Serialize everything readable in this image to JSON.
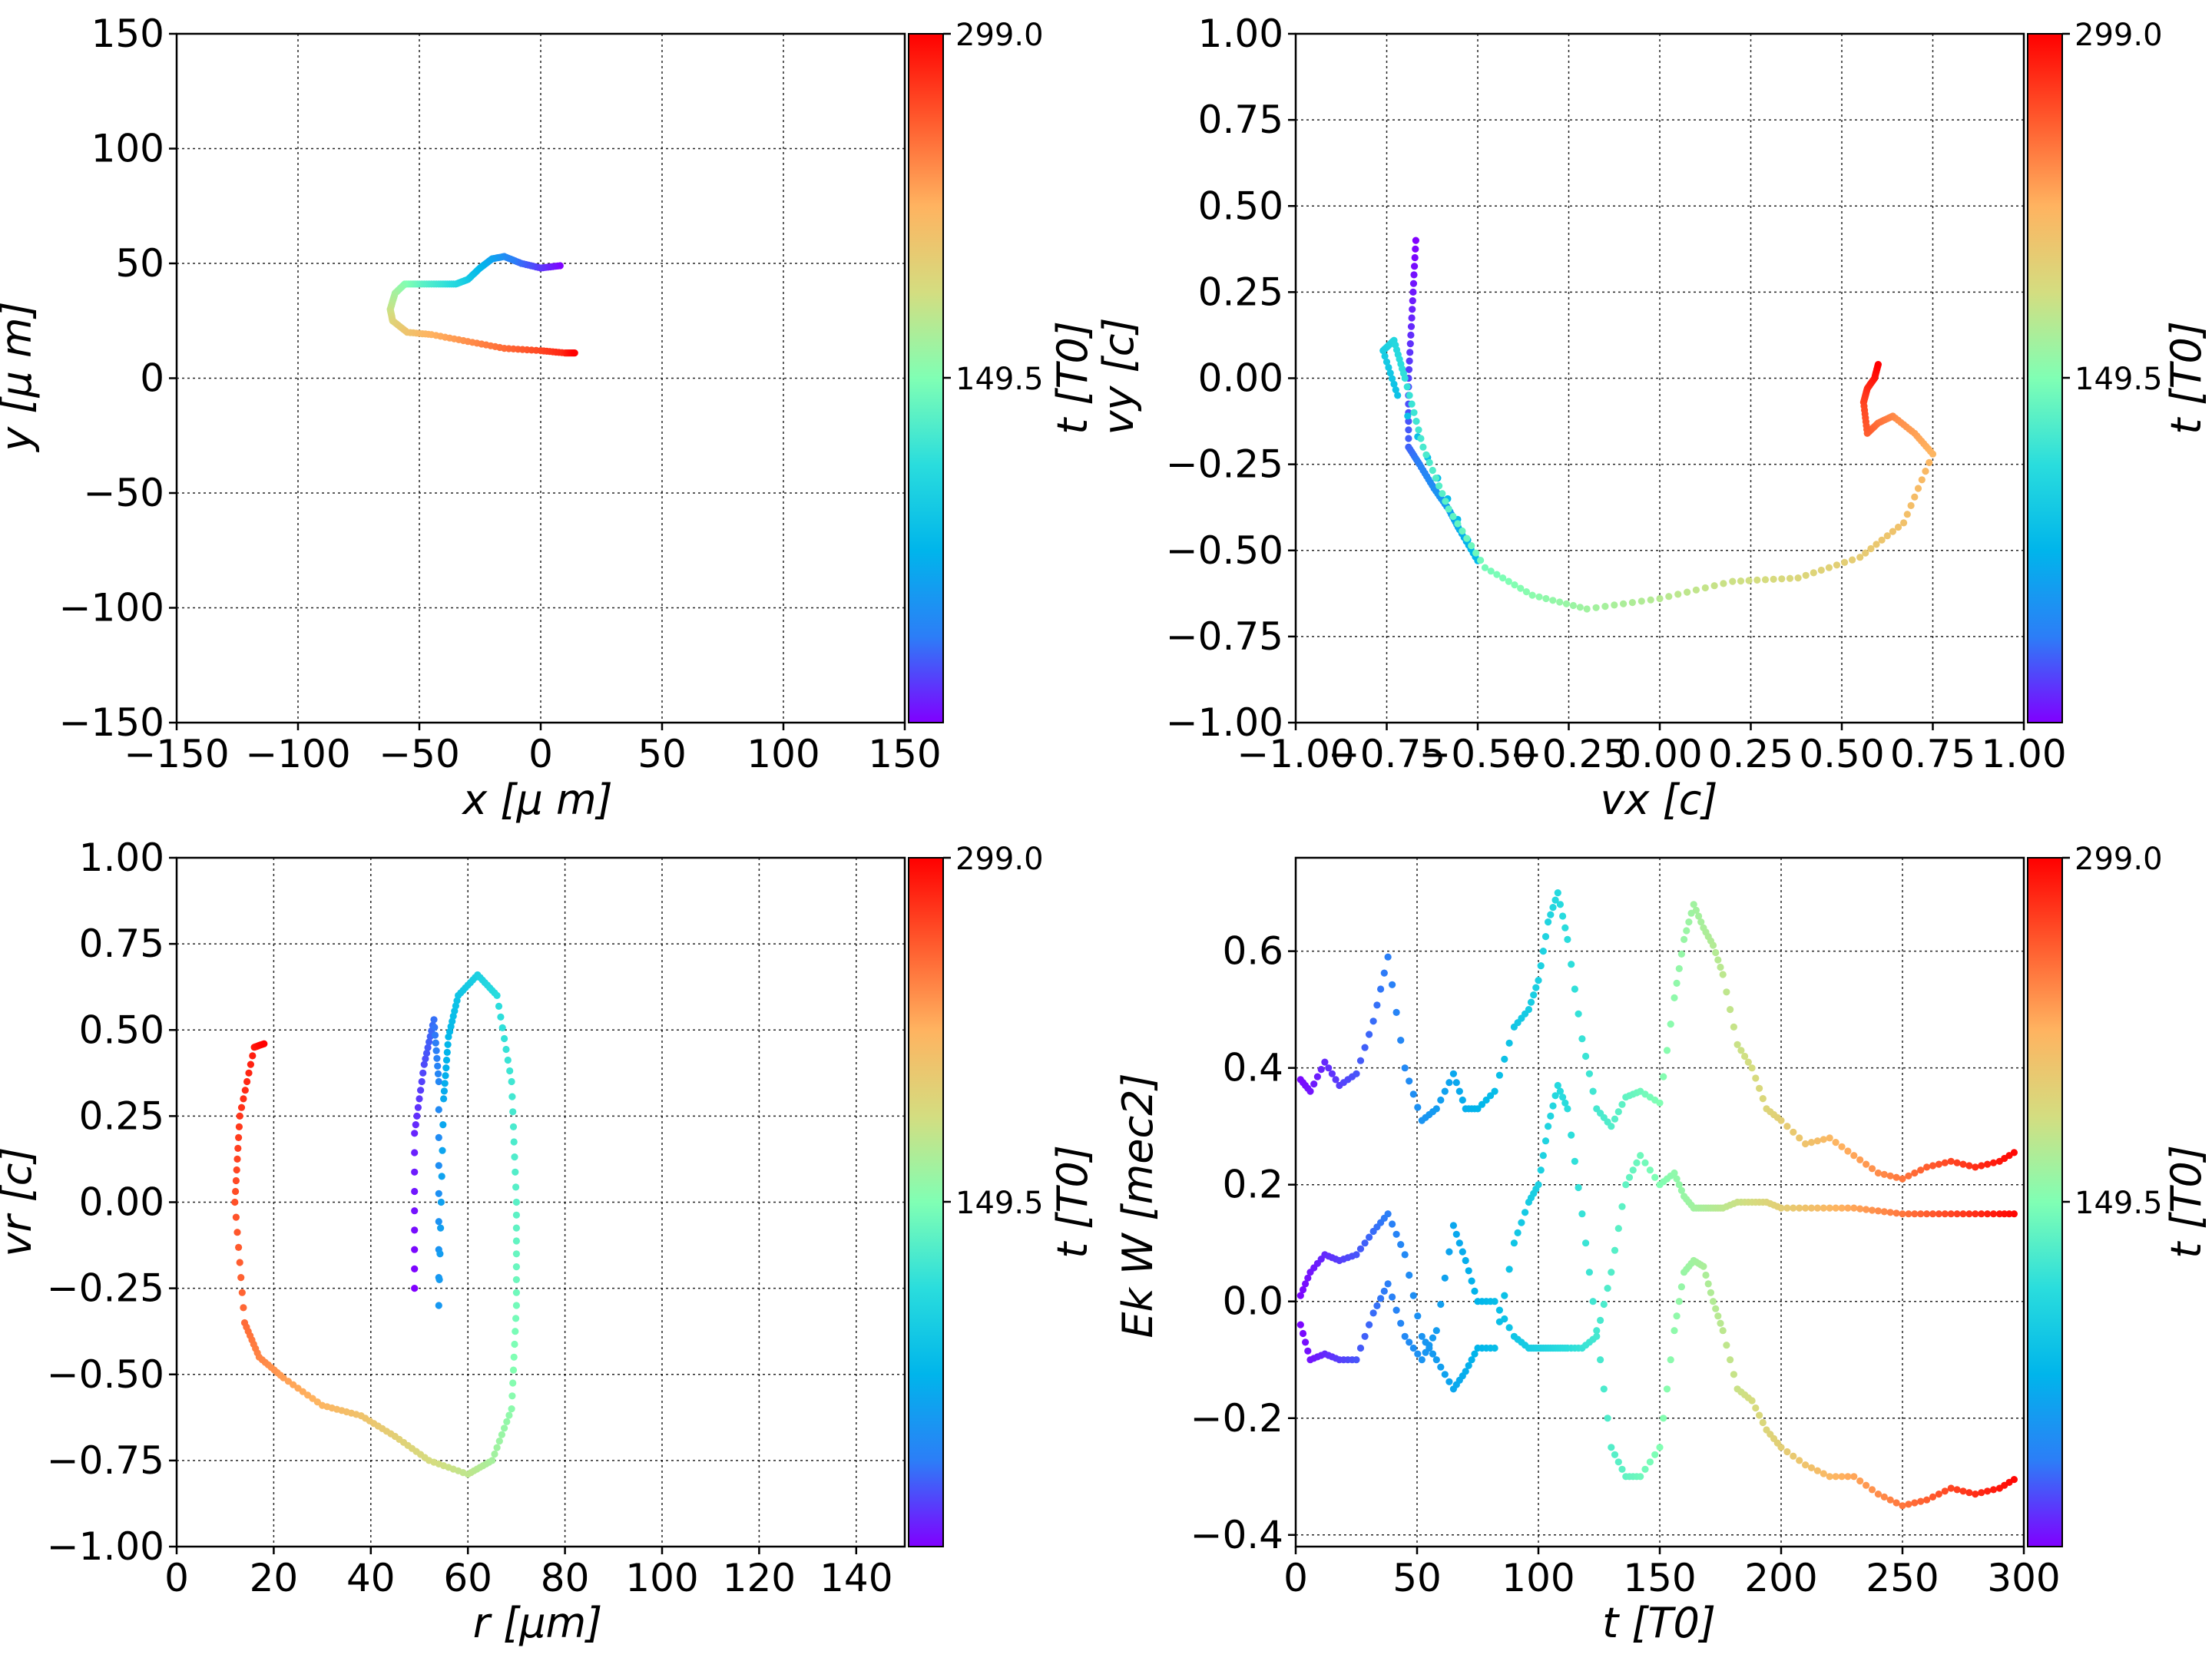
{
  "colors": {
    "colormap": "rainbow",
    "colormap_stops": [
      "#8000ff",
      "#2c7ef7",
      "#00b5eb",
      "#2adddd",
      "#80ffb4",
      "#d4dd80",
      "#ffb360",
      "#ff5a2d",
      "#ff0000"
    ]
  },
  "chart_data": [
    {
      "type": "scatter",
      "xlabel": "x  [μ m]",
      "ylabel": "y  [μ m]",
      "xlim": [
        -150,
        150
      ],
      "ylim": [
        -150,
        150
      ],
      "xticks": [
        "−150",
        "−100",
        "−50",
        "0",
        "50",
        "100",
        "150"
      ],
      "yticks": [
        "−150",
        "−100",
        "−50",
        "0",
        "50",
        "100",
        "150"
      ],
      "grid": true,
      "colorbar": {
        "label": "t [T0]",
        "ticks": [
          "149.5",
          "299.0"
        ],
        "range": [
          0,
          299.0
        ],
        "colormap": "rainbow"
      },
      "color_variable": "t",
      "t_range": [
        0,
        299
      ],
      "path": [
        [
          8,
          49
        ],
        [
          0,
          48
        ],
        [
          -8,
          50
        ],
        [
          -15,
          53
        ],
        [
          -20,
          52
        ],
        [
          -25,
          48
        ],
        [
          -30,
          43
        ],
        [
          -35,
          41
        ],
        [
          -42,
          41
        ],
        [
          -50,
          41
        ],
        [
          -56,
          41
        ],
        [
          -60,
          37
        ],
        [
          -62,
          30
        ],
        [
          -61,
          25
        ],
        [
          -55,
          20
        ],
        [
          -45,
          19
        ],
        [
          -30,
          16
        ],
        [
          -15,
          13
        ],
        [
          0,
          12
        ],
        [
          10,
          11
        ],
        [
          14,
          11
        ]
      ]
    },
    {
      "type": "scatter",
      "xlabel": "vx [c]",
      "ylabel": "vy [c]",
      "xlim": [
        -1.0,
        1.0
      ],
      "ylim": [
        -1.0,
        1.0
      ],
      "xticks": [
        "−1.00",
        "−0.75",
        "−0.50",
        "−0.25",
        "0.00",
        "0.25",
        "0.50",
        "0.75",
        "1.00"
      ],
      "yticks": [
        "−1.00",
        "−0.75",
        "−0.50",
        "−0.25",
        "0.00",
        "0.25",
        "0.50",
        "0.75",
        "1.00"
      ],
      "grid": true,
      "colorbar": {
        "label": "t [T0]",
        "ticks": [
          "149.5",
          "299.0"
        ],
        "range": [
          0,
          299.0
        ],
        "colormap": "rainbow"
      },
      "color_variable": "t",
      "t_range": [
        0,
        299
      ],
      "path": [
        [
          -0.67,
          0.4
        ],
        [
          -0.68,
          0.2
        ],
        [
          -0.69,
          0.0
        ],
        [
          -0.69,
          -0.2
        ],
        [
          -0.66,
          -0.25
        ],
        [
          -0.62,
          -0.32
        ],
        [
          -0.58,
          -0.38
        ],
        [
          -0.55,
          -0.44
        ],
        [
          -0.5,
          -0.53
        ],
        [
          -0.72,
          -0.05
        ],
        [
          -0.76,
          0.08
        ],
        [
          -0.73,
          0.11
        ],
        [
          -0.7,
          0.0
        ],
        [
          -0.65,
          -0.2
        ],
        [
          -0.58,
          -0.38
        ],
        [
          -0.48,
          -0.55
        ],
        [
          -0.35,
          -0.63
        ],
        [
          -0.2,
          -0.67
        ],
        [
          0.0,
          -0.64
        ],
        [
          0.2,
          -0.59
        ],
        [
          0.38,
          -0.58
        ],
        [
          0.55,
          -0.52
        ],
        [
          0.67,
          -0.42
        ],
        [
          0.75,
          -0.22
        ],
        [
          0.7,
          -0.16
        ],
        [
          0.64,
          -0.11
        ],
        [
          0.6,
          -0.13
        ],
        [
          0.57,
          -0.16
        ],
        [
          0.56,
          -0.07
        ],
        [
          0.57,
          -0.03
        ],
        [
          0.59,
          0.0
        ],
        [
          0.6,
          0.04
        ]
      ]
    },
    {
      "type": "scatter",
      "xlabel": "r [μm]",
      "ylabel": "vr [c]",
      "xlim": [
        0,
        150
      ],
      "ylim": [
        -1.0,
        1.0
      ],
      "xticks": [
        "0",
        "20",
        "40",
        "60",
        "80",
        "100",
        "120",
        "140"
      ],
      "yticks": [
        "−1.00",
        "−0.75",
        "−0.50",
        "−0.25",
        "0.00",
        "0.25",
        "0.50",
        "0.75",
        "1.00"
      ],
      "grid": true,
      "colorbar": {
        "label": "t [T0]",
        "ticks": [
          "149.5",
          "299.0"
        ],
        "range": [
          0,
          299.0
        ],
        "colormap": "rainbow"
      },
      "color_variable": "t",
      "t_range": [
        0,
        299
      ],
      "path": [
        [
          49,
          -0.25
        ],
        [
          49,
          0.2
        ],
        [
          51,
          0.4
        ],
        [
          53,
          0.53
        ],
        [
          54,
          0.35
        ],
        [
          54,
          -0.3
        ],
        [
          55,
          0.3
        ],
        [
          56,
          0.48
        ],
        [
          58,
          0.6
        ],
        [
          62,
          0.66
        ],
        [
          66,
          0.6
        ],
        [
          69,
          0.35
        ],
        [
          70,
          0.0
        ],
        [
          70,
          -0.3
        ],
        [
          69,
          -0.6
        ],
        [
          65,
          -0.75
        ],
        [
          60,
          -0.79
        ],
        [
          52,
          -0.75
        ],
        [
          45,
          -0.68
        ],
        [
          38,
          -0.62
        ],
        [
          30,
          -0.59
        ],
        [
          22,
          -0.51
        ],
        [
          17,
          -0.45
        ],
        [
          14,
          -0.35
        ],
        [
          12,
          0.0
        ],
        [
          13,
          0.25
        ],
        [
          16,
          0.45
        ],
        [
          18,
          0.46
        ]
      ]
    },
    {
      "type": "scatter",
      "xlabel": "t [T0]",
      "ylabel": "Ek W [mec2]",
      "xlim": [
        0,
        300
      ],
      "ylim": [
        -0.42,
        0.76
      ],
      "xticks": [
        "0",
        "50",
        "100",
        "150",
        "200",
        "250",
        "300"
      ],
      "yticks": [
        "−0.4",
        "−0.2",
        "0.0",
        "0.2",
        "0.4",
        "0.6"
      ],
      "grid": true,
      "colorbar": {
        "label": "t [T0]",
        "ticks": [
          "149.5",
          "299.0"
        ],
        "range": [
          0,
          299.0
        ],
        "colormap": "rainbow"
      },
      "series": [
        {
          "color_variable": "t",
          "x": [
            2,
            6,
            12,
            18,
            25,
            32,
            38,
            45,
            52,
            58,
            65,
            70,
            75,
            82,
            90,
            96,
            100,
            104,
            108,
            112,
            118,
            124,
            130,
            136,
            142,
            150,
            156,
            160,
            164,
            168,
            172,
            176,
            182,
            188,
            194,
            200,
            210,
            220,
            230,
            240,
            250,
            260,
            270,
            280,
            290,
            298
          ],
          "values": [
            0.38,
            0.36,
            0.41,
            0.37,
            0.39,
            0.48,
            0.59,
            0.4,
            0.31,
            0.33,
            0.39,
            0.33,
            0.33,
            0.36,
            0.47,
            0.5,
            0.55,
            0.65,
            0.7,
            0.62,
            0.45,
            0.33,
            0.3,
            0.35,
            0.36,
            0.34,
            0.52,
            0.62,
            0.68,
            0.64,
            0.61,
            0.56,
            0.44,
            0.4,
            0.33,
            0.31,
            0.27,
            0.28,
            0.25,
            0.22,
            0.21,
            0.23,
            0.24,
            0.23,
            0.24,
            0.26
          ]
        },
        {
          "color_variable": "t",
          "x": [
            2,
            6,
            12,
            18,
            25,
            32,
            38,
            45,
            52,
            58,
            65,
            70,
            75,
            82,
            90,
            96,
            100,
            104,
            108,
            112,
            118,
            124,
            130,
            136,
            142,
            150,
            156,
            160,
            164,
            168,
            172,
            176,
            182,
            188,
            194,
            200,
            210,
            220,
            230,
            240,
            250,
            260,
            270,
            280,
            290,
            298
          ],
          "values": [
            0.01,
            0.05,
            0.08,
            0.07,
            0.08,
            0.12,
            0.15,
            0.08,
            -0.06,
            -0.1,
            -0.15,
            -0.12,
            -0.08,
            -0.08,
            0.1,
            0.17,
            0.2,
            0.3,
            0.37,
            0.33,
            0.15,
            -0.05,
            -0.25,
            -0.3,
            -0.3,
            -0.25,
            -0.05,
            0.05,
            0.07,
            0.06,
            0.0,
            -0.05,
            -0.15,
            -0.17,
            -0.22,
            -0.25,
            -0.28,
            -0.3,
            -0.3,
            -0.33,
            -0.35,
            -0.34,
            -0.32,
            -0.33,
            -0.32,
            -0.3
          ]
        },
        {
          "color_variable": "t",
          "x": [
            2,
            6,
            12,
            18,
            25,
            32,
            38,
            45,
            52,
            58,
            65,
            70,
            75,
            82,
            90,
            96,
            100,
            104,
            108,
            112,
            118,
            124,
            130,
            136,
            142,
            150,
            156,
            160,
            164,
            168,
            172,
            176,
            182,
            188,
            194,
            200,
            210,
            220,
            230,
            240,
            250,
            260,
            270,
            280,
            290,
            298
          ],
          "values": [
            -0.04,
            -0.1,
            -0.09,
            -0.1,
            -0.1,
            -0.02,
            0.03,
            -0.06,
            -0.1,
            -0.05,
            0.13,
            0.07,
            0.0,
            0.0,
            -0.06,
            -0.08,
            -0.08,
            -0.08,
            -0.08,
            -0.08,
            -0.08,
            -0.06,
            0.05,
            0.2,
            0.25,
            0.2,
            0.22,
            0.18,
            0.16,
            0.16,
            0.16,
            0.16,
            0.17,
            0.17,
            0.17,
            0.16,
            0.16,
            0.16,
            0.16,
            0.155,
            0.15,
            0.15,
            0.15,
            0.15,
            0.15,
            0.15
          ]
        }
      ]
    }
  ]
}
